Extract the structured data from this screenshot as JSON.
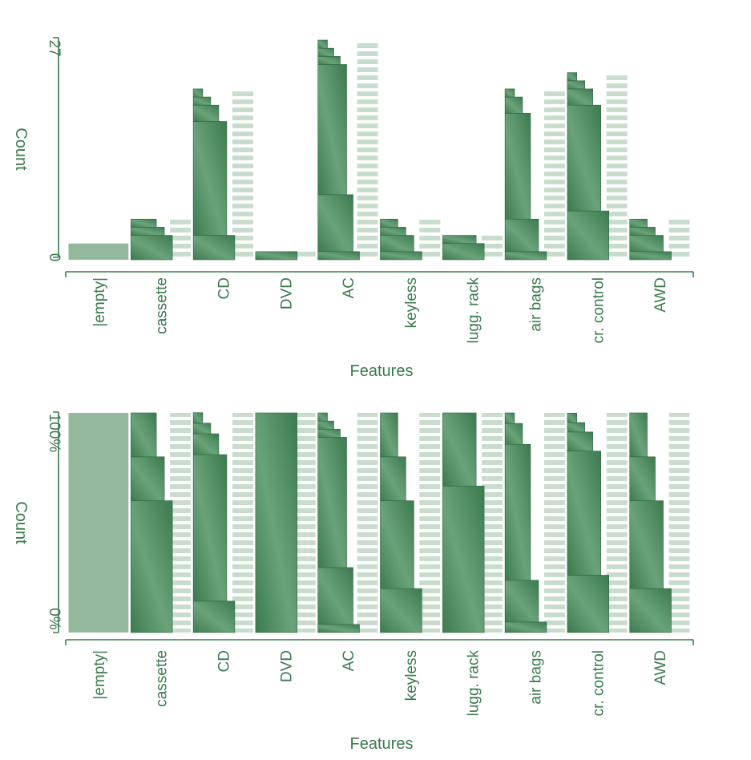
{
  "colors": {
    "text": "#3a7a4c",
    "axis": "#3a7a4c",
    "bar_dark": "#3d7a4f",
    "bar_light": "#6aa37a",
    "empty_bar": "#93b89b",
    "stripe_light": "#c9ddcc",
    "stripe_white": "#ffffff"
  },
  "chart_data": [
    {
      "type": "bar",
      "title": "",
      "xlabel": "Features",
      "ylabel": "Count",
      "ylim": [
        0,
        27
      ],
      "yticks": [
        "0",
        "27"
      ],
      "stacked": true,
      "categories": [
        "|empty|",
        "cassette",
        "CD",
        "DVD",
        "AC",
        "keyless",
        "lugg. rack",
        "air bags",
        "cr. control",
        "AWD"
      ],
      "values": [
        2,
        5,
        21,
        1,
        27,
        5,
        3,
        21,
        23,
        5
      ],
      "segments": [
        [
          2
        ],
        [
          3,
          1,
          1
        ],
        [
          3,
          14,
          2,
          1,
          1
        ],
        [
          1
        ],
        [
          1,
          7,
          16,
          1,
          1,
          1
        ],
        [
          1,
          2,
          1,
          1
        ],
        [
          2,
          1
        ],
        [
          1,
          4,
          13,
          2,
          1
        ],
        [
          6,
          13,
          2,
          1,
          1
        ],
        [
          1,
          2,
          1,
          1
        ]
      ]
    },
    {
      "type": "bar",
      "title": "",
      "xlabel": "Features",
      "ylabel": "Count",
      "ylim": [
        0,
        100
      ],
      "yticks": [
        "0%",
        "100%"
      ],
      "stacked": true,
      "percent": true,
      "categories": [
        "|empty|",
        "cassette",
        "CD",
        "DVD",
        "AC",
        "keyless",
        "lugg. rack",
        "air bags",
        "cr. control",
        "AWD"
      ],
      "values": [
        100,
        100,
        100,
        100,
        100,
        100,
        100,
        100,
        100,
        100
      ],
      "segments": [
        [
          100
        ],
        [
          60,
          20,
          20
        ],
        [
          14.3,
          66.7,
          9.5,
          4.8,
          4.8
        ],
        [
          100
        ],
        [
          3.7,
          25.9,
          59.3,
          3.7,
          3.7,
          3.7
        ],
        [
          20,
          40,
          20,
          20
        ],
        [
          66.7,
          33.3
        ],
        [
          4.8,
          19,
          61.9,
          9.5,
          4.8
        ],
        [
          26.1,
          56.5,
          8.7,
          4.3,
          4.3
        ],
        [
          20,
          40,
          20,
          20
        ]
      ]
    }
  ]
}
